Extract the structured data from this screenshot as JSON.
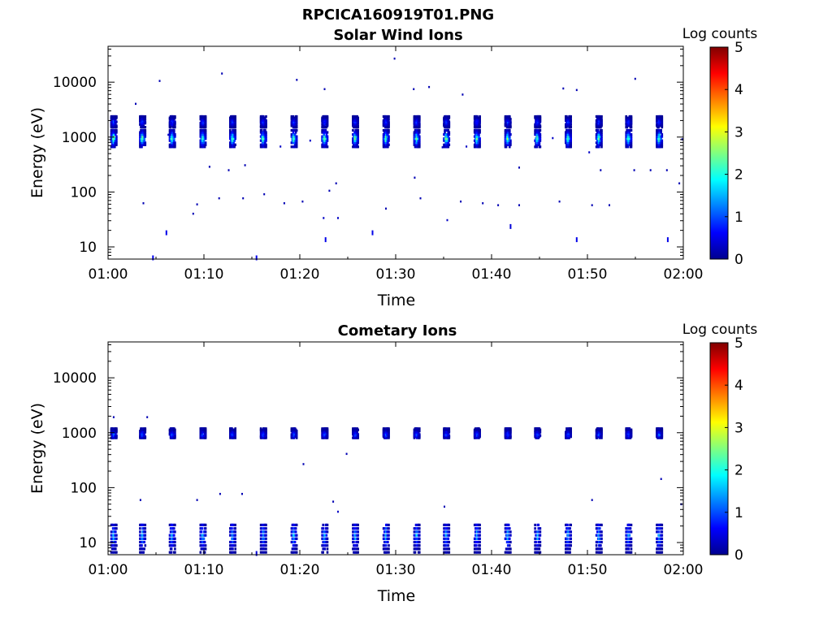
{
  "figure_title": "RPCICA160919T01.PNG",
  "colors": {
    "colormap": [
      "#00008f",
      "#0000ff",
      "#0080ff",
      "#00ffff",
      "#80ff80",
      "#ffff00",
      "#ff8000",
      "#ff0000",
      "#800000"
    ],
    "axis": "#000000",
    "background": "#ffffff"
  },
  "chart_data": [
    {
      "type": "heatmap",
      "title": "Solar Wind Ions",
      "xlabel": "Time",
      "ylabel": "Energy (eV)",
      "x_ticks": [
        "01:00",
        "01:10",
        "01:20",
        "01:30",
        "01:40",
        "01:50",
        "02:00"
      ],
      "y_ticks": [
        "10",
        "100",
        "1000",
        "10000"
      ],
      "y_scale": "log",
      "ylim": [
        6,
        45000
      ],
      "xlim_minutes": [
        0,
        60
      ],
      "colorbar": {
        "label": "Log counts",
        "ticks": [
          "0",
          "1",
          "2",
          "3",
          "4",
          "5"
        ],
        "range": [
          0,
          5
        ]
      },
      "pulse_times_minutes": [
        0.5,
        3.5,
        6.6,
        9.8,
        12.9,
        16.1,
        19.3,
        22.5,
        25.7,
        28.9,
        32.1,
        35.2,
        38.4,
        41.6,
        44.7,
        47.9,
        51.1,
        54.2,
        57.4
      ],
      "bands": [
        {
          "energy_center_eV": 1000,
          "energy_range_eV": [
            700,
            1400
          ],
          "peak_log_counts": 2.9
        },
        {
          "energy_center_eV": 2000,
          "energy_range_eV": [
            1600,
            2500
          ],
          "peak_log_counts": 1.1
        }
      ],
      "isolated_points": [
        {
          "t": 2.8,
          "e": 4200,
          "v": 0.2
        },
        {
          "t": 5.3,
          "e": 11000,
          "v": 0.2
        },
        {
          "t": 11.8,
          "e": 15000,
          "v": 0.2
        },
        {
          "t": 19.6,
          "e": 11500,
          "v": 0.2
        },
        {
          "t": 22.5,
          "e": 7800,
          "v": 0.2
        },
        {
          "t": 29.8,
          "e": 28000,
          "v": 0.2
        },
        {
          "t": 31.8,
          "e": 7800,
          "v": 0.2
        },
        {
          "t": 33.4,
          "e": 8500,
          "v": 0.2
        },
        {
          "t": 36.9,
          "e": 6200,
          "v": 0.2
        },
        {
          "t": 47.4,
          "e": 8000,
          "v": 0.2
        },
        {
          "t": 48.8,
          "e": 7500,
          "v": 0.2
        },
        {
          "t": 54.9,
          "e": 12000,
          "v": 0.2
        },
        {
          "t": 10.5,
          "e": 300,
          "v": 0.2
        },
        {
          "t": 12.5,
          "e": 260,
          "v": 0.2
        },
        {
          "t": 14.2,
          "e": 320,
          "v": 0.2
        },
        {
          "t": 23.7,
          "e": 150,
          "v": 0.2
        },
        {
          "t": 23.0,
          "e": 110,
          "v": 0.2
        },
        {
          "t": 31.9,
          "e": 190,
          "v": 0.2
        },
        {
          "t": 42.8,
          "e": 290,
          "v": 0.2
        },
        {
          "t": 51.3,
          "e": 260,
          "v": 0.2
        },
        {
          "t": 54.8,
          "e": 260,
          "v": 0.2
        },
        {
          "t": 56.5,
          "e": 260,
          "v": 0.2
        },
        {
          "t": 58.2,
          "e": 260,
          "v": 0.2
        },
        {
          "t": 59.5,
          "e": 150,
          "v": 0.2
        },
        {
          "t": 3.6,
          "e": 65,
          "v": 0.2
        },
        {
          "t": 9.2,
          "e": 62,
          "v": 0.2
        },
        {
          "t": 11.5,
          "e": 80,
          "v": 0.2
        },
        {
          "t": 14.0,
          "e": 80,
          "v": 0.2
        },
        {
          "t": 16.2,
          "e": 95,
          "v": 0.2
        },
        {
          "t": 18.3,
          "e": 65,
          "v": 0.2
        },
        {
          "t": 20.2,
          "e": 70,
          "v": 0.2
        },
        {
          "t": 28.9,
          "e": 52,
          "v": 0.2
        },
        {
          "t": 32.5,
          "e": 80,
          "v": 0.2
        },
        {
          "t": 36.7,
          "e": 70,
          "v": 0.2
        },
        {
          "t": 39.0,
          "e": 65,
          "v": 0.2
        },
        {
          "t": 40.6,
          "e": 60,
          "v": 0.2
        },
        {
          "t": 42.8,
          "e": 60,
          "v": 0.2
        },
        {
          "t": 47.0,
          "e": 70,
          "v": 0.2
        },
        {
          "t": 50.4,
          "e": 60,
          "v": 0.2
        },
        {
          "t": 52.2,
          "e": 60,
          "v": 0.2
        },
        {
          "t": 8.8,
          "e": 42,
          "v": 0.2
        },
        {
          "t": 22.4,
          "e": 35,
          "v": 0.3
        },
        {
          "t": 23.9,
          "e": 35,
          "v": 0.3
        },
        {
          "t": 35.3,
          "e": 32,
          "v": 0.3
        },
        {
          "t": 41.9,
          "e": 26,
          "v": 0.4
        },
        {
          "t": 6.0,
          "e": 20,
          "v": 0.5
        },
        {
          "t": 27.5,
          "e": 20,
          "v": 0.5
        },
        {
          "t": 22.6,
          "e": 15,
          "v": 0.5
        },
        {
          "t": 48.8,
          "e": 15,
          "v": 0.5
        },
        {
          "t": 58.3,
          "e": 15,
          "v": 0.5
        },
        {
          "t": 4.6,
          "e": 7,
          "v": 0.5
        },
        {
          "t": 15.4,
          "e": 7,
          "v": 0.5
        },
        {
          "t": 6.2,
          "e": 1150,
          "v": 0.3
        },
        {
          "t": 17.9,
          "e": 700,
          "v": 0.3
        },
        {
          "t": 21.0,
          "e": 900,
          "v": 0.3
        },
        {
          "t": 34.8,
          "e": 680,
          "v": 0.3
        },
        {
          "t": 37.3,
          "e": 700,
          "v": 0.3
        },
        {
          "t": 46.3,
          "e": 1000,
          "v": 0.3
        },
        {
          "t": 50.1,
          "e": 550,
          "v": 0.3
        },
        {
          "t": 59.8,
          "e": 950,
          "v": 0.3
        }
      ]
    },
    {
      "type": "heatmap",
      "title": "Cometary Ions",
      "xlabel": "Time",
      "ylabel": "Energy (eV)",
      "x_ticks": [
        "01:00",
        "01:10",
        "01:20",
        "01:30",
        "01:40",
        "01:50",
        "02:00"
      ],
      "y_ticks": [
        "10",
        "100",
        "1000",
        "10000"
      ],
      "y_scale": "log",
      "ylim": [
        6,
        45000
      ],
      "xlim_minutes": [
        0,
        60
      ],
      "colorbar": {
        "label": "Log counts",
        "ticks": [
          "0",
          "1",
          "2",
          "3",
          "4",
          "5"
        ],
        "range": [
          0,
          5
        ]
      },
      "pulse_times_minutes": [
        0.5,
        3.5,
        6.6,
        9.8,
        12.9,
        16.1,
        19.3,
        22.5,
        25.7,
        28.9,
        32.1,
        35.2,
        38.4,
        41.6,
        44.7,
        47.9,
        51.1,
        54.2,
        57.4
      ],
      "bands": [
        {
          "energy_center_eV": 1000,
          "energy_range_eV": [
            850,
            1250
          ],
          "peak_log_counts": 1.3
        },
        {
          "energy_center_eV": 14,
          "energy_range_eV": [
            7,
            22
          ],
          "peak_log_counts": 1.8
        }
      ],
      "isolated_points": [
        {
          "t": 0.5,
          "e": 2000,
          "v": 0.2
        },
        {
          "t": 4.0,
          "e": 2000,
          "v": 0.2
        },
        {
          "t": 3.3,
          "e": 62,
          "v": 0.2
        },
        {
          "t": 9.2,
          "e": 62,
          "v": 0.2
        },
        {
          "t": 11.6,
          "e": 80,
          "v": 0.2
        },
        {
          "t": 13.9,
          "e": 80,
          "v": 0.2
        },
        {
          "t": 20.3,
          "e": 280,
          "v": 0.2
        },
        {
          "t": 24.8,
          "e": 430,
          "v": 0.2
        },
        {
          "t": 23.4,
          "e": 58,
          "v": 0.2
        },
        {
          "t": 23.9,
          "e": 38,
          "v": 0.3
        },
        {
          "t": 35.0,
          "e": 47,
          "v": 0.2
        },
        {
          "t": 50.4,
          "e": 62,
          "v": 0.2
        },
        {
          "t": 57.6,
          "e": 150,
          "v": 0.2
        },
        {
          "t": 59.7,
          "e": 52,
          "v": 0.2
        },
        {
          "t": 15.4,
          "e": 7,
          "v": 0.4
        }
      ]
    }
  ]
}
